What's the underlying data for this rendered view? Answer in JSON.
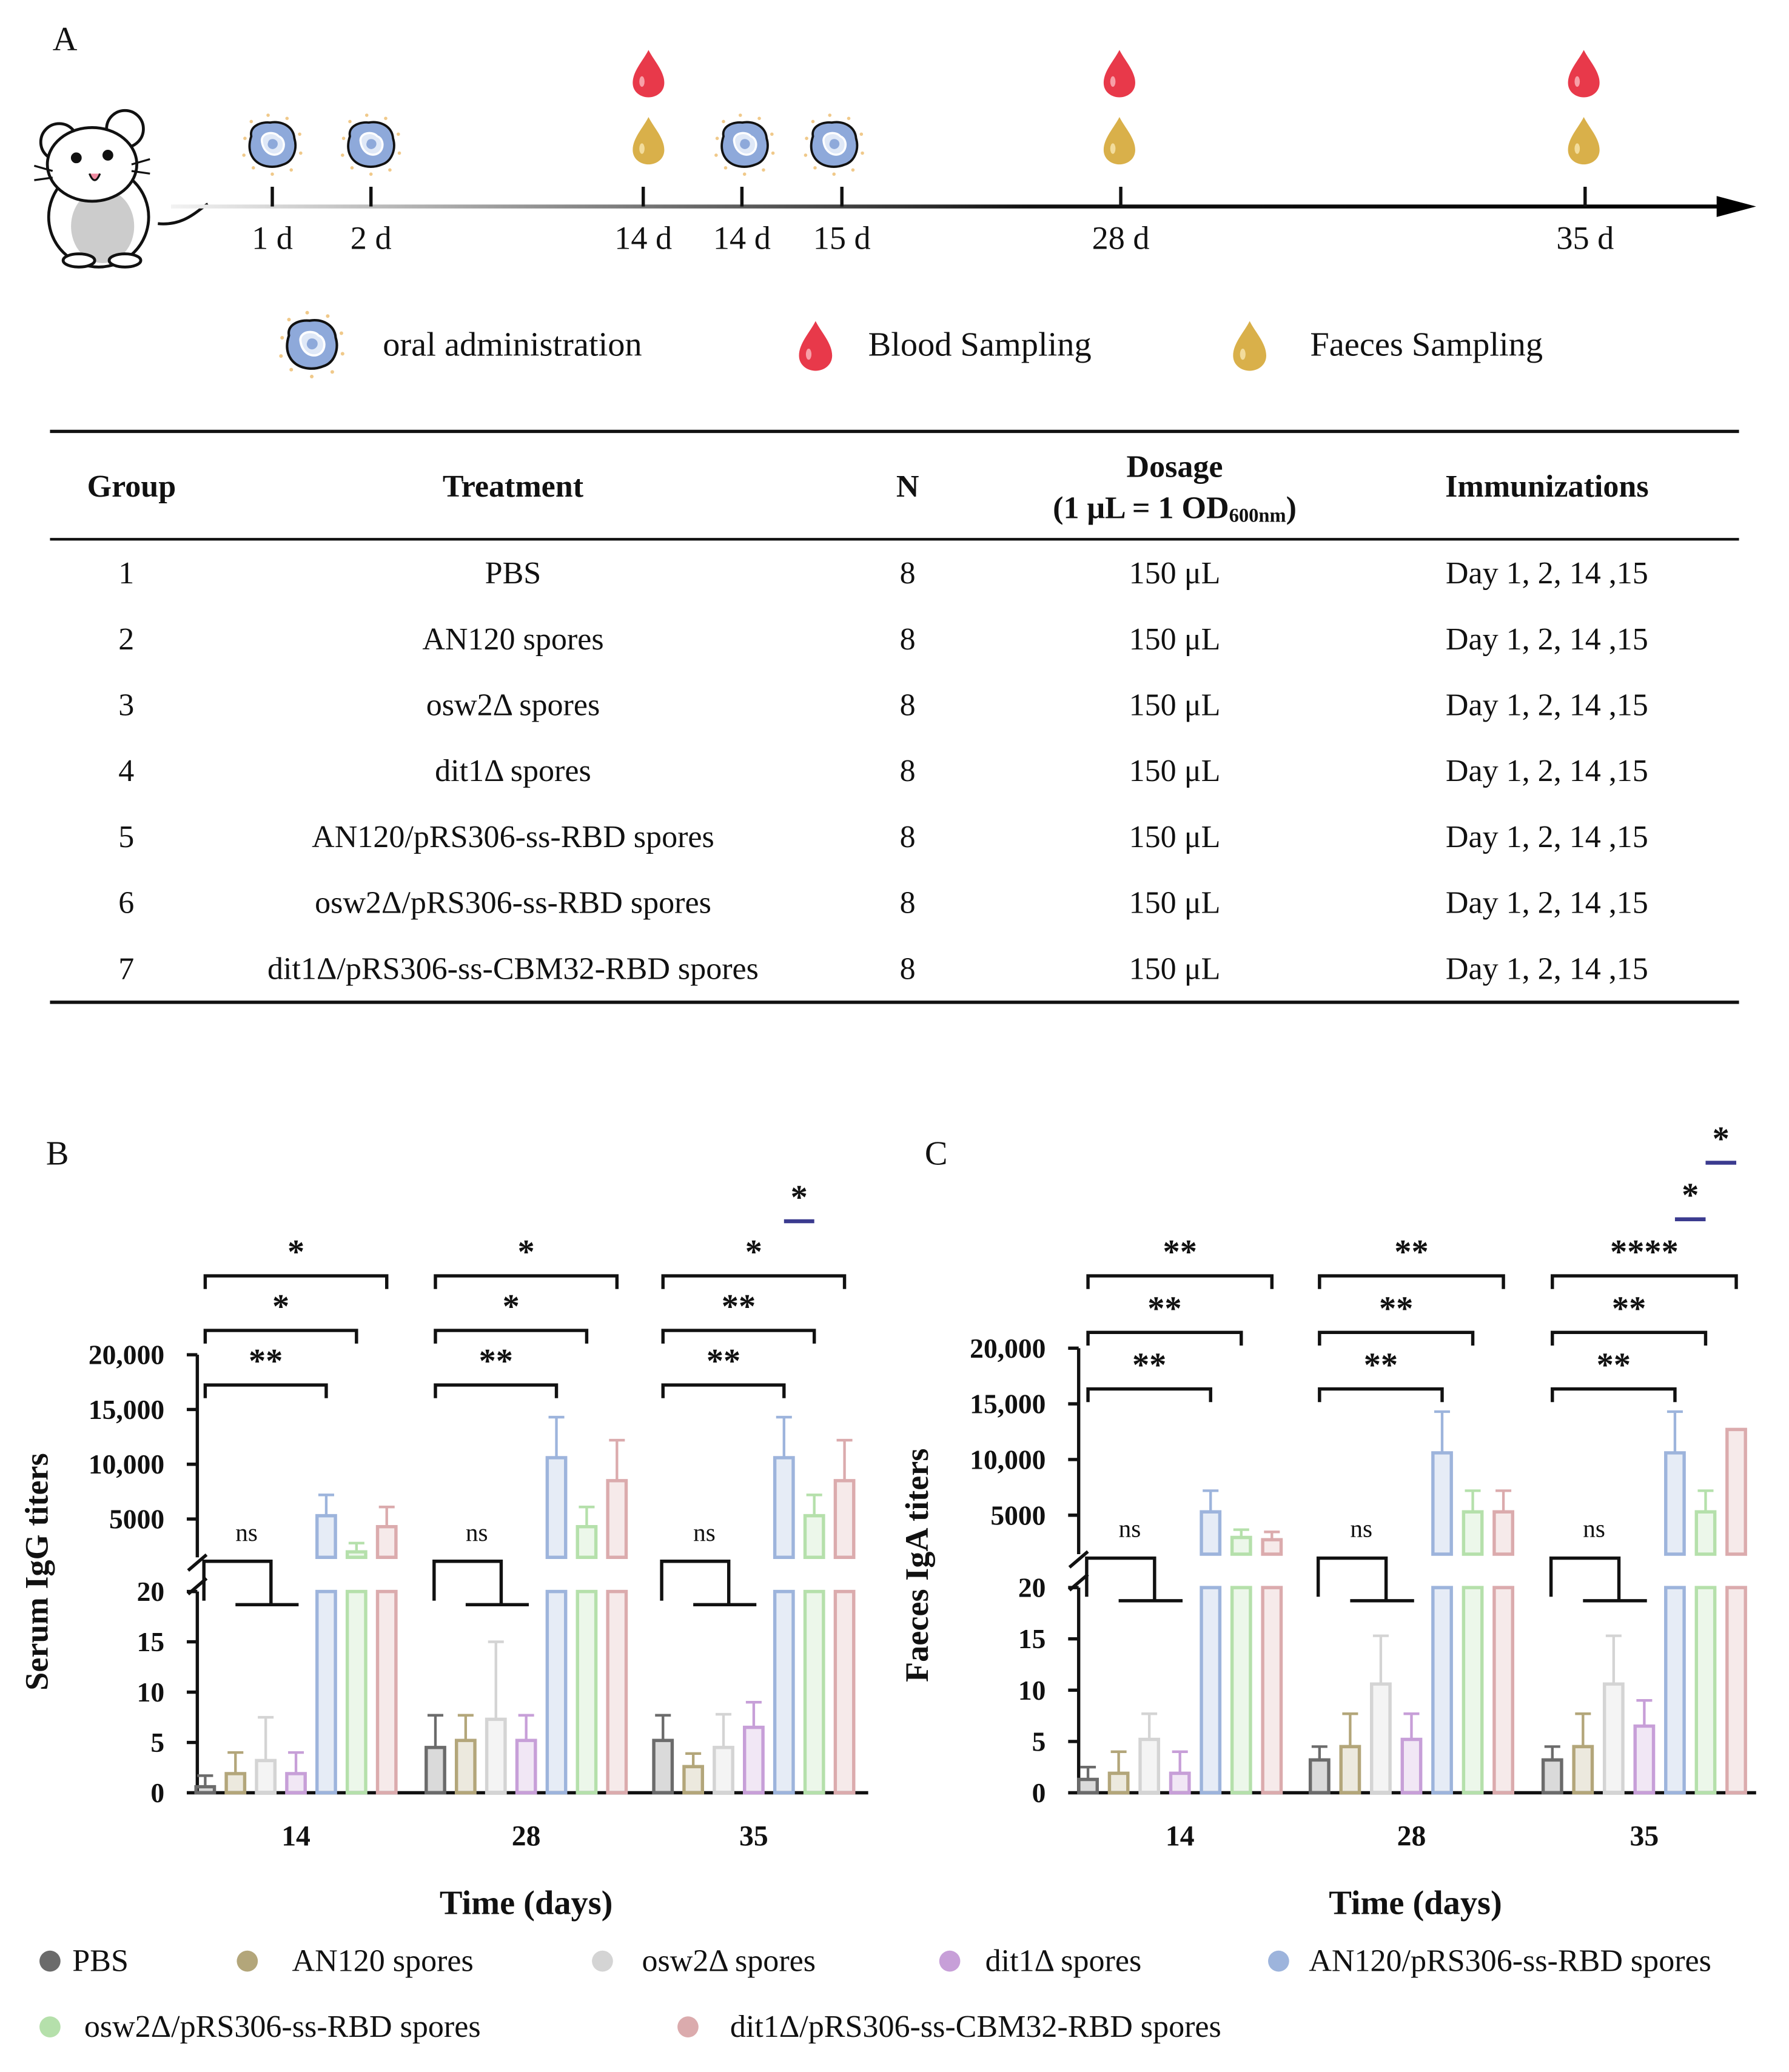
{
  "panel_labels": [
    "A",
    "B",
    "C"
  ],
  "timeline": {
    "labels": [
      "1 d",
      "2 d",
      "14 d",
      "14 d",
      "15 d",
      "28 d",
      "35 d"
    ],
    "legend": [
      "oral administration",
      "Blood Sampling",
      "Faeces Sampling"
    ]
  },
  "table": {
    "headers": [
      "Group",
      "Treatment",
      "N",
      [
        "Dosage",
        "(1 μL = 1 OD",
        "600nm",
        ")"
      ],
      "Immunizations"
    ],
    "rows": [
      [
        1,
        "PBS",
        8,
        "150 μL",
        "Day 1, 2, 14 ,15"
      ],
      [
        2,
        "AN120 spores",
        8,
        "150 μL",
        "Day 1, 2, 14 ,15"
      ],
      [
        3,
        "osw2Δ spores",
        8,
        "150 μL",
        "Day 1, 2, 14 ,15"
      ],
      [
        4,
        "dit1Δ spores",
        8,
        "150 μL",
        "Day 1, 2, 14 ,15"
      ],
      [
        5,
        "AN120/pRS306-ss-RBD spores",
        8,
        "150 μL",
        "Day 1, 2, 14 ,15"
      ],
      [
        6,
        "osw2Δ/pRS306-ss-RBD spores",
        8,
        "150 μL",
        "Day 1, 2, 14 ,15"
      ],
      [
        7,
        "dit1Δ/pRS306-ss-CBM32-RBD spores",
        8,
        "150 μL",
        "Day 1, 2, 14 ,15"
      ]
    ]
  },
  "series_legend": [
    {
      "name": "PBS",
      "color": "#6b6b6b"
    },
    {
      "name": "AN120 spores",
      "color": "#b3a67a"
    },
    {
      "name": "osw2Δ spores",
      "color": "#d4d4d4"
    },
    {
      "name": "dit1Δ spores",
      "color": "#c79fd8"
    },
    {
      "name": "AN120/pRS306-ss-RBD spores",
      "color": "#9db4dc"
    },
    {
      "name": "osw2Δ/pRS306-ss-RBD spores",
      "color": "#b5e0ab"
    },
    {
      "name": "dit1Δ/pRS306-ss-CBM32-RBD spores",
      "color": "#dbabad"
    }
  ],
  "chart_data": [
    {
      "type": "bar",
      "ylabel": "Serum IgG titers",
      "xlabel": "Time (days)",
      "categories": [
        14,
        28,
        35
      ],
      "ylim": [
        0,
        20
      ],
      "yticks": [
        0,
        5,
        10,
        15,
        20
      ],
      "ylim_upper": [
        1500,
        20000
      ],
      "yticks_upper": [
        5000,
        {
          "value": 10000,
          "label": "10,000"
        },
        {
          "value": 15000,
          "label": "15,000"
        },
        {
          "value": 20000,
          "label": "20,000"
        }
      ],
      "series": [
        {
          "values": [
            0.6,
            4.5,
            5.2
          ],
          "errors": [
            1.1,
            3.2,
            2.5
          ]
        },
        {
          "values": [
            1.9,
            5.2,
            2.6
          ],
          "errors": [
            2.1,
            2.5,
            1.3
          ]
        },
        {
          "values": [
            3.2,
            7.3,
            4.5
          ],
          "errors": [
            4.3,
            7.7,
            3.3
          ]
        },
        {
          "values": [
            1.9,
            5.2,
            6.5
          ],
          "errors": [
            2.1,
            2.5,
            2.5
          ]
        },
        {
          "values": [
            5300,
            10600,
            10600
          ],
          "errors": [
            1900,
            3700,
            3700
          ]
        },
        {
          "values": [
            2000,
            4300,
            5300
          ],
          "errors": [
            800,
            1800,
            1900
          ]
        },
        {
          "values": [
            4300,
            8500,
            8500
          ],
          "errors": [
            1800,
            3700,
            3700
          ]
        }
      ],
      "significance": [
        {
          "category": 0,
          "from": 0,
          "to": 4,
          "label": "**"
        },
        {
          "category": 0,
          "from": 0,
          "to": 5,
          "label": "*"
        },
        {
          "category": 0,
          "from": 0,
          "to": 6,
          "label": "*"
        },
        {
          "category": 0,
          "from": 0,
          "to": 3,
          "label": "ns"
        },
        {
          "category": 1,
          "from": 0,
          "to": 4,
          "label": "**"
        },
        {
          "category": 1,
          "from": 0,
          "to": 5,
          "label": "*"
        },
        {
          "category": 1,
          "from": 0,
          "to": 6,
          "label": "*"
        },
        {
          "category": 1,
          "from": 0,
          "to": 3,
          "label": "ns"
        },
        {
          "category": 2,
          "from": 0,
          "to": 4,
          "label": "**"
        },
        {
          "category": 2,
          "from": 0,
          "to": 5,
          "label": "**"
        },
        {
          "category": 2,
          "from": 0,
          "to": 6,
          "label": "*"
        },
        {
          "category": 2,
          "from": 0,
          "to": 3,
          "label": "ns"
        },
        {
          "category": 2,
          "from": 4,
          "to": 5,
          "label": "*"
        }
      ]
    },
    {
      "type": "bar",
      "ylabel": "Faeces IgA titers",
      "xlabel": "Time (days)",
      "categories": [
        14,
        28,
        35
      ],
      "ylim": [
        0,
        20
      ],
      "yticks": [
        0,
        5,
        10,
        15,
        20
      ],
      "ylim_upper": [
        1500,
        20000
      ],
      "yticks_upper": [
        5000,
        {
          "value": 10000,
          "label": "10,000"
        },
        {
          "value": 15000,
          "label": "15,000"
        },
        {
          "value": 20000,
          "label": "20,000"
        }
      ],
      "series": [
        {
          "values": [
            1.3,
            3.2,
            3.2
          ],
          "errors": [
            1.2,
            1.3,
            1.3
          ]
        },
        {
          "values": [
            1.9,
            4.5,
            4.5
          ],
          "errors": [
            2.1,
            3.2,
            3.2
          ]
        },
        {
          "values": [
            5.2,
            10.6,
            10.6
          ],
          "errors": [
            2.5,
            4.7,
            4.7
          ]
        },
        {
          "values": [
            1.9,
            5.2,
            6.5
          ],
          "errors": [
            2.1,
            2.5,
            2.5
          ]
        },
        {
          "values": [
            5300,
            10600,
            10600
          ],
          "errors": [
            1900,
            3700,
            3700
          ]
        },
        {
          "values": [
            3000,
            5300,
            5300
          ],
          "errors": [
            700,
            1900,
            1900
          ]
        },
        {
          "values": [
            2800,
            5300,
            12700
          ],
          "errors": [
            700,
            1900,
            null
          ]
        }
      ],
      "significance": [
        {
          "category": 0,
          "from": 0,
          "to": 4,
          "label": "**"
        },
        {
          "category": 0,
          "from": 0,
          "to": 5,
          "label": "**"
        },
        {
          "category": 0,
          "from": 0,
          "to": 6,
          "label": "**"
        },
        {
          "category": 0,
          "from": 0,
          "to": 3,
          "label": "ns"
        },
        {
          "category": 1,
          "from": 0,
          "to": 4,
          "label": "**"
        },
        {
          "category": 1,
          "from": 0,
          "to": 5,
          "label": "**"
        },
        {
          "category": 1,
          "from": 0,
          "to": 6,
          "label": "**"
        },
        {
          "category": 1,
          "from": 0,
          "to": 3,
          "label": "ns"
        },
        {
          "category": 2,
          "from": 0,
          "to": 4,
          "label": "**"
        },
        {
          "category": 2,
          "from": 0,
          "to": 5,
          "label": "**"
        },
        {
          "category": 2,
          "from": 0,
          "to": 6,
          "label": "****"
        },
        {
          "category": 2,
          "from": 0,
          "to": 3,
          "label": "ns"
        },
        {
          "category": 2,
          "from": 4,
          "to": 5,
          "label": "*"
        },
        {
          "category": 2,
          "from": 5,
          "to": 6,
          "label": "*"
        }
      ]
    }
  ]
}
